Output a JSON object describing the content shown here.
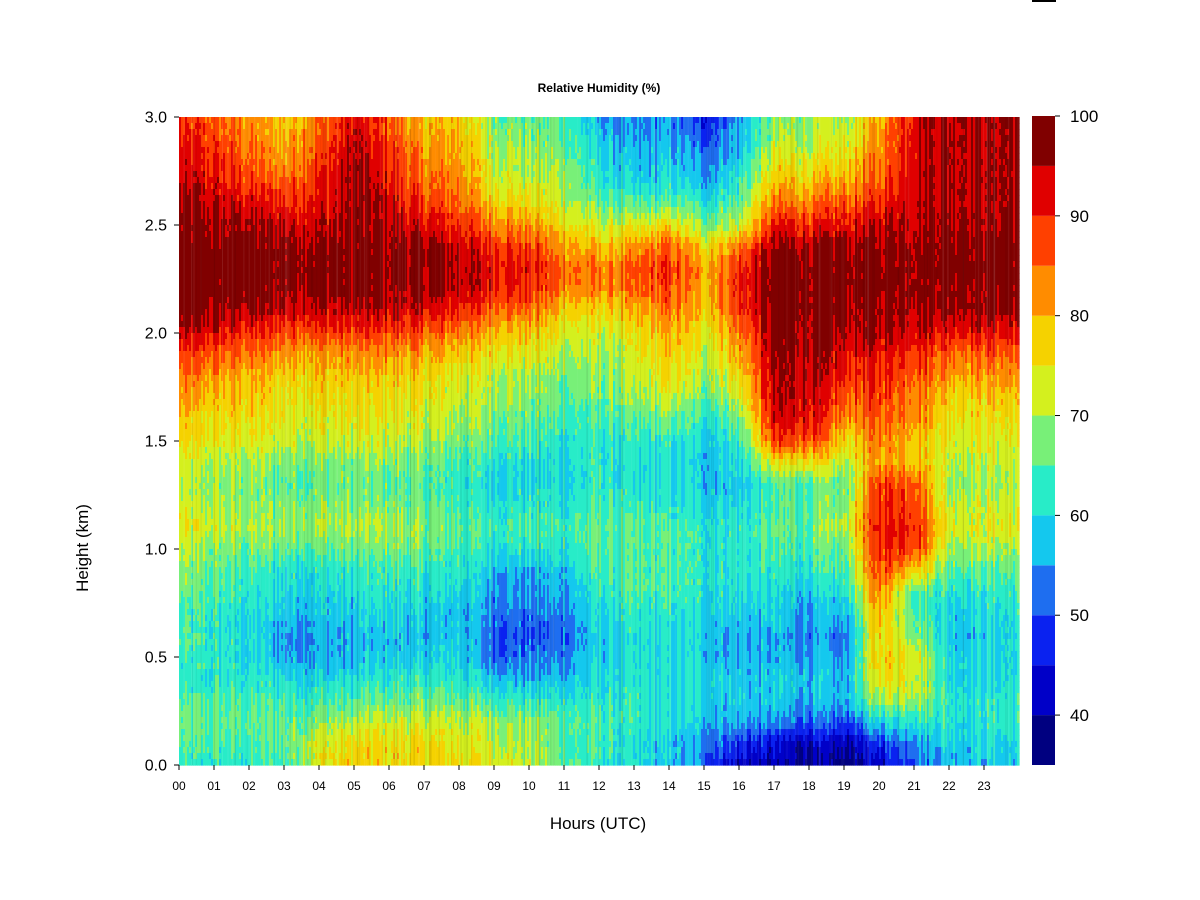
{
  "chart_data": {
    "type": "heatmap",
    "title": "Relative Humidity (%)",
    "xlabel": "Hours (UTC)",
    "ylabel": "Height (km)",
    "xlim": [
      0,
      24
    ],
    "ylim": [
      0.0,
      3.0
    ],
    "x_ticks": [
      "00",
      "01",
      "02",
      "03",
      "04",
      "05",
      "06",
      "07",
      "08",
      "09",
      "10",
      "11",
      "12",
      "13",
      "14",
      "15",
      "16",
      "17",
      "18",
      "19",
      "20",
      "21",
      "22",
      "23"
    ],
    "y_ticks": [
      "0.0",
      "0.5",
      "1.0",
      "1.5",
      "2.0",
      "2.5",
      "3.0"
    ],
    "colorbar": {
      "min": 35,
      "max": 100,
      "levels": [
        35,
        40,
        45,
        50,
        55,
        60,
        65,
        70,
        75,
        80,
        85,
        90,
        95,
        100
      ],
      "colors": [
        "#000080",
        "#0000c8",
        "#0a22f0",
        "#1e6ef0",
        "#14c8ee",
        "#28ecc8",
        "#78f078",
        "#d4f01e",
        "#f5d200",
        "#ff8c00",
        "#ff4000",
        "#e00000",
        "#800000"
      ],
      "tick_labels": [
        "40",
        "50",
        "60",
        "70",
        "80",
        "90",
        "100"
      ]
    },
    "grid": {
      "heights_km": [
        0.0,
        0.1,
        0.2,
        0.3,
        0.4,
        0.5,
        0.6,
        0.7,
        0.8,
        0.9,
        1.0,
        1.1,
        1.2,
        1.3,
        1.4,
        1.5,
        1.6,
        1.7,
        1.8,
        1.9,
        2.0,
        2.1,
        2.2,
        2.3,
        2.4,
        2.5,
        2.6,
        2.7,
        2.8,
        2.9,
        3.0
      ],
      "hours_utc": [
        0,
        1,
        2,
        3,
        4,
        5,
        6,
        7,
        8,
        9,
        10,
        11,
        12,
        13,
        14,
        15,
        16,
        17,
        18,
        19,
        20,
        21,
        22,
        23,
        24
      ],
      "rh_percent": [
        [
          62,
          62,
          62,
          63,
          74,
          77,
          77,
          77,
          76,
          74,
          72,
          66,
          62,
          60,
          58,
          52,
          42,
          40,
          38,
          37,
          42,
          52,
          56,
          58,
          58
        ],
        [
          64,
          64,
          64,
          66,
          73,
          76,
          76,
          76,
          74,
          72,
          70,
          65,
          63,
          60,
          58,
          55,
          48,
          44,
          42,
          40,
          48,
          56,
          60,
          60,
          60
        ],
        [
          66,
          66,
          66,
          66,
          68,
          70,
          72,
          72,
          72,
          70,
          68,
          66,
          64,
          62,
          60,
          58,
          56,
          54,
          52,
          50,
          60,
          62,
          62,
          62,
          62
        ],
        [
          64,
          64,
          64,
          64,
          64,
          64,
          66,
          66,
          66,
          64,
          62,
          62,
          62,
          62,
          60,
          60,
          58,
          58,
          56,
          56,
          70,
          72,
          62,
          62,
          62
        ],
        [
          62,
          62,
          62,
          60,
          60,
          60,
          62,
          62,
          62,
          58,
          56,
          57,
          60,
          60,
          60,
          60,
          58,
          58,
          58,
          56,
          76,
          74,
          60,
          60,
          60
        ],
        [
          62,
          62,
          60,
          56,
          56,
          56,
          58,
          58,
          60,
          52,
          52,
          54,
          58,
          60,
          60,
          58,
          56,
          56,
          56,
          54,
          78,
          76,
          60,
          60,
          60
        ],
        [
          64,
          62,
          60,
          55,
          56,
          56,
          58,
          56,
          58,
          52,
          50,
          52,
          58,
          60,
          60,
          58,
          56,
          56,
          54,
          52,
          78,
          70,
          58,
          58,
          60
        ],
        [
          64,
          62,
          60,
          58,
          58,
          58,
          60,
          58,
          58,
          54,
          52,
          54,
          60,
          62,
          62,
          60,
          58,
          58,
          56,
          56,
          80,
          66,
          60,
          60,
          62
        ],
        [
          66,
          64,
          62,
          60,
          60,
          60,
          62,
          60,
          60,
          55,
          54,
          56,
          62,
          64,
          64,
          62,
          60,
          60,
          58,
          60,
          84,
          66,
          62,
          62,
          64
        ],
        [
          68,
          66,
          64,
          62,
          62,
          62,
          64,
          62,
          62,
          58,
          56,
          58,
          64,
          64,
          64,
          62,
          62,
          62,
          62,
          64,
          88,
          80,
          66,
          66,
          66
        ],
        [
          70,
          68,
          66,
          66,
          66,
          66,
          68,
          66,
          64,
          62,
          62,
          62,
          66,
          64,
          64,
          62,
          62,
          64,
          64,
          66,
          90,
          90,
          70,
          70,
          70
        ],
        [
          74,
          72,
          70,
          70,
          70,
          70,
          70,
          68,
          66,
          64,
          64,
          64,
          66,
          64,
          64,
          62,
          62,
          66,
          66,
          70,
          92,
          92,
          74,
          74,
          74
        ],
        [
          72,
          70,
          68,
          68,
          68,
          68,
          68,
          66,
          64,
          62,
          62,
          62,
          64,
          62,
          62,
          60,
          60,
          64,
          66,
          68,
          90,
          90,
          72,
          72,
          72
        ],
        [
          70,
          68,
          68,
          66,
          66,
          66,
          66,
          64,
          62,
          60,
          60,
          60,
          62,
          60,
          60,
          58,
          58,
          64,
          66,
          66,
          88,
          88,
          70,
          70,
          70
        ],
        [
          72,
          70,
          70,
          68,
          68,
          68,
          68,
          66,
          64,
          62,
          60,
          60,
          62,
          60,
          60,
          58,
          60,
          74,
          76,
          70,
          82,
          80,
          72,
          72,
          72
        ],
        [
          76,
          74,
          74,
          72,
          72,
          72,
          72,
          70,
          68,
          66,
          64,
          62,
          62,
          62,
          62,
          60,
          62,
          88,
          88,
          76,
          84,
          80,
          74,
          74,
          74
        ],
        [
          78,
          76,
          76,
          74,
          74,
          74,
          74,
          72,
          70,
          68,
          66,
          64,
          64,
          64,
          66,
          62,
          66,
          92,
          92,
          82,
          86,
          84,
          76,
          76,
          76
        ],
        [
          80,
          78,
          78,
          76,
          76,
          76,
          76,
          74,
          72,
          70,
          68,
          66,
          66,
          68,
          72,
          66,
          72,
          94,
          94,
          86,
          88,
          86,
          78,
          78,
          78
        ],
        [
          84,
          82,
          80,
          78,
          78,
          78,
          78,
          76,
          74,
          72,
          70,
          68,
          68,
          70,
          76,
          70,
          76,
          95,
          95,
          90,
          90,
          88,
          82,
          82,
          82
        ],
        [
          88,
          86,
          84,
          82,
          82,
          82,
          82,
          80,
          78,
          76,
          74,
          70,
          70,
          72,
          78,
          72,
          80,
          96,
          96,
          92,
          92,
          90,
          86,
          86,
          86
        ],
        [
          94,
          92,
          90,
          88,
          88,
          88,
          88,
          86,
          84,
          80,
          78,
          74,
          72,
          74,
          80,
          74,
          84,
          97,
          97,
          95,
          95,
          95,
          92,
          92,
          92
        ],
        [
          98,
          97,
          96,
          94,
          94,
          94,
          94,
          92,
          90,
          86,
          84,
          78,
          76,
          78,
          84,
          78,
          88,
          98,
          98,
          97,
          97,
          97,
          97,
          97,
          97
        ],
        [
          99,
          98,
          98,
          97,
          97,
          97,
          97,
          96,
          95,
          92,
          90,
          84,
          82,
          84,
          88,
          80,
          90,
          98,
          98,
          98,
          98,
          98,
          98,
          98,
          98
        ],
        [
          99,
          99,
          99,
          98,
          98,
          98,
          98,
          97,
          96,
          93,
          91,
          86,
          84,
          85,
          90,
          80,
          90,
          98,
          98,
          98,
          98,
          98,
          99,
          99,
          99
        ],
        [
          99,
          98,
          98,
          97,
          97,
          97,
          97,
          96,
          94,
          90,
          88,
          82,
          78,
          80,
          86,
          76,
          84,
          96,
          96,
          97,
          97,
          98,
          98,
          98,
          98
        ],
        [
          97,
          96,
          96,
          94,
          94,
          96,
          95,
          92,
          90,
          84,
          82,
          76,
          72,
          72,
          76,
          68,
          72,
          90,
          90,
          92,
          94,
          96,
          97,
          97,
          97
        ],
        [
          96,
          94,
          92,
          90,
          92,
          96,
          94,
          88,
          86,
          78,
          76,
          72,
          66,
          64,
          66,
          62,
          66,
          84,
          84,
          86,
          90,
          95,
          96,
          96,
          96
        ],
        [
          94,
          92,
          88,
          86,
          90,
          96,
          92,
          84,
          84,
          74,
          72,
          70,
          62,
          58,
          60,
          56,
          62,
          78,
          78,
          80,
          86,
          94,
          96,
          96,
          96
        ],
        [
          92,
          90,
          86,
          82,
          88,
          95,
          90,
          82,
          82,
          72,
          70,
          68,
          60,
          56,
          58,
          54,
          58,
          74,
          74,
          76,
          84,
          94,
          96,
          96,
          96
        ],
        [
          90,
          88,
          84,
          80,
          86,
          94,
          88,
          80,
          80,
          70,
          68,
          66,
          58,
          54,
          56,
          50,
          56,
          70,
          70,
          72,
          82,
          94,
          96,
          96,
          96
        ],
        [
          88,
          86,
          82,
          78,
          84,
          92,
          86,
          78,
          78,
          68,
          66,
          64,
          56,
          52,
          54,
          46,
          54,
          68,
          68,
          70,
          80,
          94,
          96,
          96,
          96
        ]
      ]
    }
  }
}
